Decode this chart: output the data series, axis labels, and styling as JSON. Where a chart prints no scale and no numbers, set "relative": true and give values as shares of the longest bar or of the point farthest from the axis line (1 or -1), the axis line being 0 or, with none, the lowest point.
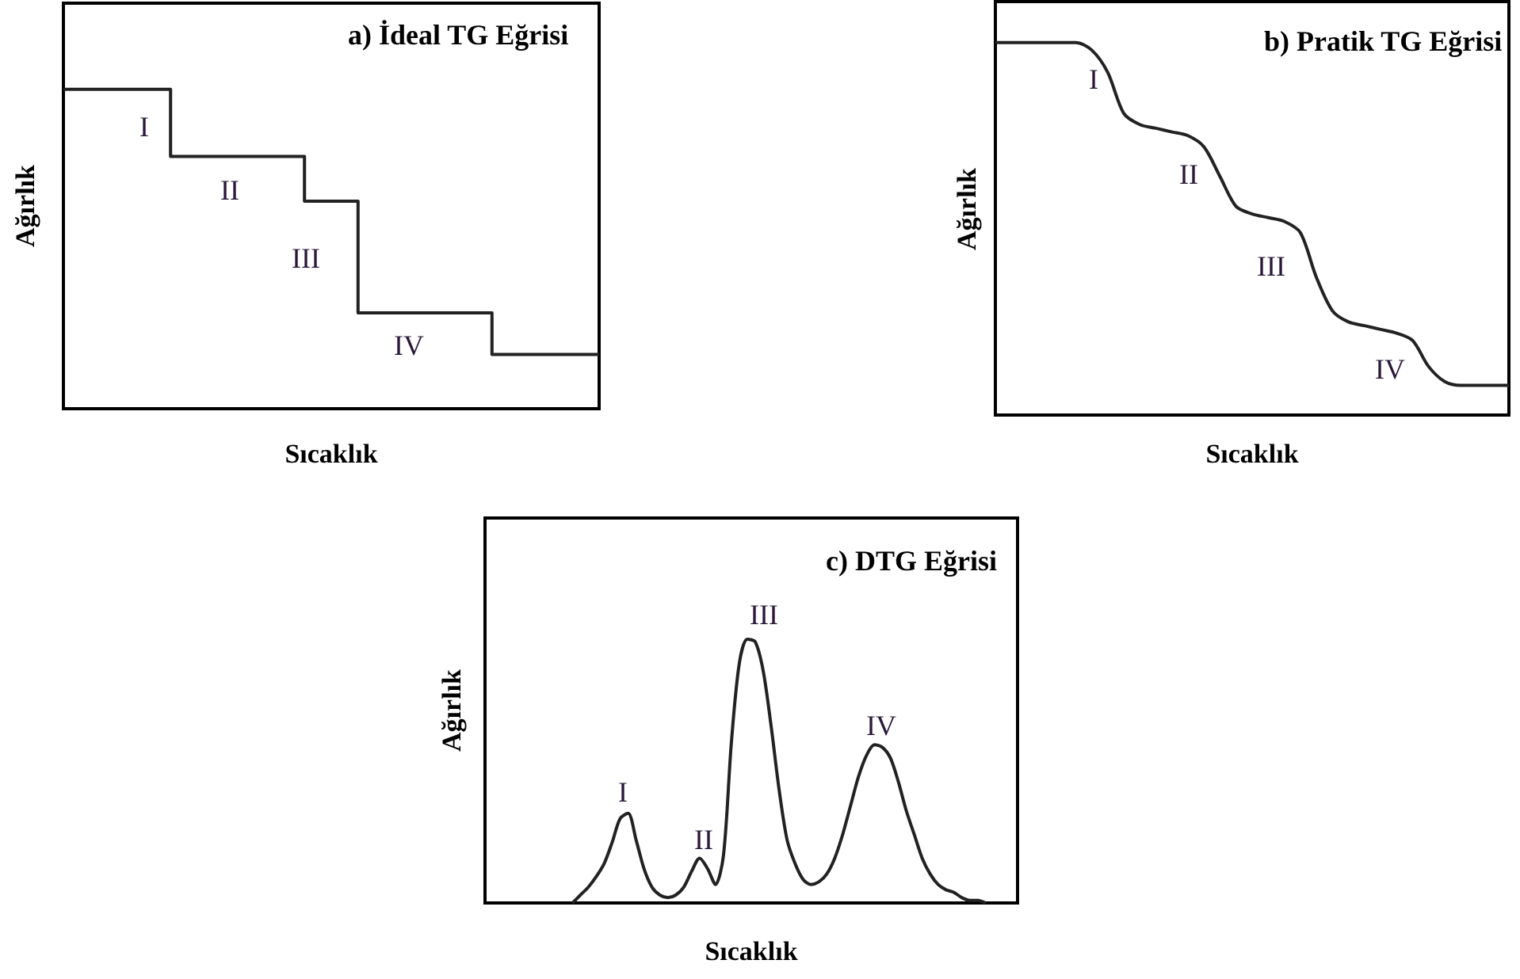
{
  "chart_data": [
    {
      "type": "step",
      "title": "a) İdeal TG Eğrisi",
      "xlabel": "Sıcaklık",
      "ylabel": "Ağırlık",
      "relative": true,
      "color": "#222222",
      "categories": [
        null,
        null,
        null,
        null,
        null,
        null,
        null,
        null,
        null,
        null,
        null,
        null,
        null,
        null,
        null,
        null,
        null,
        null,
        null,
        null,
        null
      ],
      "values": [
        1,
        1,
        1,
        1,
        0.79,
        0.79,
        0.79,
        0.79,
        0.79,
        0.65,
        0.65,
        0.3,
        0.3,
        0.3,
        0.3,
        0.3,
        0.17,
        0.17,
        0.17,
        0.17,
        0.17
      ],
      "annotations": [
        "I",
        "II",
        "III",
        "IV"
      ]
    },
    {
      "type": "line",
      "title": "b) Pratik TG Eğrisi",
      "xlabel": "Sıcaklık",
      "ylabel": "Ağırlık",
      "relative": true,
      "color": "#222222",
      "categories": [
        null,
        null,
        null,
        null,
        null,
        null,
        null,
        null,
        null,
        null,
        null,
        null,
        null,
        null,
        null,
        null,
        null,
        null,
        null,
        null,
        null,
        null,
        null,
        null,
        null,
        null,
        null,
        null,
        null,
        null,
        null,
        null,
        null
      ],
      "values": [
        1,
        1,
        1,
        1,
        1,
        1,
        0.98,
        0.92,
        0.81,
        0.78,
        0.77,
        0.76,
        0.75,
        0.72,
        0.64,
        0.56,
        0.54,
        0.53,
        0.52,
        0.49,
        0.37,
        0.28,
        0.25,
        0.24,
        0.23,
        0.22,
        0.2,
        0.13,
        0.09,
        0.08,
        0.08,
        0.08,
        0.08
      ],
      "annotations": [
        "I",
        "II",
        "III",
        "IV"
      ]
    },
    {
      "type": "line",
      "title": "c) DTG Eğrisi",
      "xlabel": "Sıcaklık",
      "ylabel": "Ağırlık",
      "relative": true,
      "color": "#222222",
      "categories": [
        null,
        null,
        null,
        null,
        null,
        null,
        null,
        null,
        null,
        null,
        null,
        null,
        null,
        null,
        null,
        null,
        null,
        null,
        null,
        null,
        null,
        null,
        null,
        null,
        null,
        null,
        null,
        null,
        null,
        null,
        null,
        null,
        null,
        null,
        null,
        null,
        null,
        null,
        null,
        null,
        null,
        null,
        null,
        null,
        null,
        null,
        null,
        null,
        null,
        null,
        null,
        null,
        null,
        null,
        null,
        null,
        null,
        null,
        null,
        null,
        null,
        null,
        null,
        null,
        null,
        null,
        null,
        null
      ],
      "values": [
        null,
        null,
        null,
        null,
        null,
        null,
        null,
        null,
        null,
        null,
        null,
        0,
        0.03,
        0.06,
        0.1,
        0.15,
        0.23,
        0.32,
        0.34,
        0.24,
        0.13,
        0.06,
        0.03,
        0.02,
        0.03,
        0.06,
        0.12,
        0.17,
        0.13,
        0.07,
        0.18,
        0.61,
        0.91,
        1,
        0.99,
        0.88,
        0.67,
        0.43,
        0.24,
        0.15,
        0.09,
        0.07,
        0.08,
        0.11,
        0.17,
        0.26,
        0.37,
        0.48,
        0.56,
        0.6,
        0.59,
        0.55,
        0.46,
        0.35,
        0.26,
        0.17,
        0.11,
        0.07,
        0.05,
        0.04,
        0.02,
        0.01,
        0.01,
        0,
        null,
        null,
        null,
        null
      ],
      "annotations": [
        "I",
        "II",
        "III",
        "IV"
      ]
    }
  ]
}
